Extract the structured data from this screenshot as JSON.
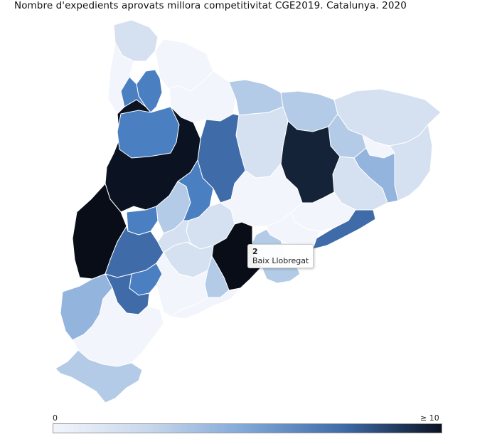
{
  "title": "Nombre d'expedients aprovats millora competitivitat CGE2019. Catalunya. 2020",
  "legend": {
    "min_label": "0",
    "max_label": "≥ 10",
    "min": 0,
    "max": 10
  },
  "tooltip": {
    "value": "2",
    "region": "Baix Llobregat"
  },
  "colors": {
    "c0": "#f2f5fb",
    "c1": "#d5e1f1",
    "c2": "#b3cbe6",
    "c3": "#93b4dc",
    "c5": "#4a7fc1",
    "c6": "#3f6ca8",
    "c7": "#3a6399",
    "c8": "#152338",
    "c9": "#0b1322",
    "c10": "#080d18",
    "highlight": "#f5a623"
  }
}
